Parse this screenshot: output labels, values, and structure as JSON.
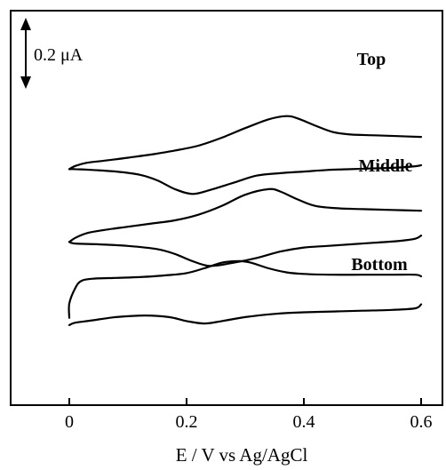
{
  "chart_data": {
    "type": "line",
    "xlabel": "E / V vs Ag/AgCl",
    "ylabel": "",
    "xlim": [
      -0.1,
      0.62
    ],
    "ylim": [
      0,
      1.35
    ],
    "xticks": [
      {
        "value": 0,
        "label": "0"
      },
      {
        "value": 0.2,
        "label": "0.2"
      },
      {
        "value": 0.4,
        "label": "0.4"
      },
      {
        "value": 0.6,
        "label": "0.6"
      }
    ],
    "grid": false,
    "legend": "none",
    "scale_bar": {
      "label": "0.2 μA",
      "value_uA": 0.2
    },
    "series": [
      {
        "name": "Top",
        "forward": [
          [
            0.0,
            0.882
          ],
          [
            0.01,
            0.894
          ],
          [
            0.03,
            0.906
          ],
          [
            0.06,
            0.914
          ],
          [
            0.1,
            0.925
          ],
          [
            0.14,
            0.937
          ],
          [
            0.18,
            0.952
          ],
          [
            0.22,
            0.97
          ],
          [
            0.26,
            1.0
          ],
          [
            0.3,
            1.036
          ],
          [
            0.34,
            1.069
          ],
          [
            0.37,
            1.081
          ],
          [
            0.39,
            1.072
          ],
          [
            0.42,
            1.045
          ],
          [
            0.45,
            1.021
          ],
          [
            0.48,
            1.012
          ],
          [
            0.52,
            1.009
          ],
          [
            0.56,
            1.006
          ],
          [
            0.6,
            1.003
          ]
        ],
        "reverse": [
          [
            0.6,
            0.897
          ],
          [
            0.59,
            0.893
          ],
          [
            0.56,
            0.888
          ],
          [
            0.52,
            0.885
          ],
          [
            0.48,
            0.882
          ],
          [
            0.44,
            0.879
          ],
          [
            0.4,
            0.873
          ],
          [
            0.36,
            0.867
          ],
          [
            0.32,
            0.858
          ],
          [
            0.28,
            0.831
          ],
          [
            0.24,
            0.804
          ],
          [
            0.21,
            0.789
          ],
          [
            0.18,
            0.807
          ],
          [
            0.15,
            0.84
          ],
          [
            0.12,
            0.861
          ],
          [
            0.08,
            0.873
          ],
          [
            0.04,
            0.879
          ],
          [
            0.01,
            0.882
          ],
          [
            0.0,
            0.882
          ]
        ]
      },
      {
        "name": "Middle",
        "forward": [
          [
            0.0,
            0.609
          ],
          [
            0.01,
            0.624
          ],
          [
            0.03,
            0.642
          ],
          [
            0.06,
            0.654
          ],
          [
            0.1,
            0.666
          ],
          [
            0.14,
            0.678
          ],
          [
            0.18,
            0.69
          ],
          [
            0.22,
            0.711
          ],
          [
            0.26,
            0.744
          ],
          [
            0.3,
            0.786
          ],
          [
            0.34,
            0.807
          ],
          [
            0.36,
            0.798
          ],
          [
            0.39,
            0.768
          ],
          [
            0.42,
            0.744
          ],
          [
            0.46,
            0.735
          ],
          [
            0.5,
            0.732
          ],
          [
            0.55,
            0.729
          ],
          [
            0.6,
            0.726
          ]
        ],
        "reverse": [
          [
            0.6,
            0.633
          ],
          [
            0.59,
            0.621
          ],
          [
            0.56,
            0.612
          ],
          [
            0.52,
            0.606
          ],
          [
            0.48,
            0.6
          ],
          [
            0.44,
            0.594
          ],
          [
            0.4,
            0.588
          ],
          [
            0.36,
            0.573
          ],
          [
            0.32,
            0.549
          ],
          [
            0.28,
            0.531
          ],
          [
            0.24,
            0.519
          ],
          [
            0.21,
            0.537
          ],
          [
            0.18,
            0.564
          ],
          [
            0.15,
            0.582
          ],
          [
            0.1,
            0.594
          ],
          [
            0.05,
            0.6
          ],
          [
            0.01,
            0.603
          ],
          [
            0.0,
            0.609
          ]
        ]
      },
      {
        "name": "Bottom",
        "forward": [
          [
            0.0,
            0.324
          ],
          [
            0.0,
            0.378
          ],
          [
            0.01,
            0.435
          ],
          [
            0.02,
            0.462
          ],
          [
            0.04,
            0.471
          ],
          [
            0.08,
            0.474
          ],
          [
            0.12,
            0.477
          ],
          [
            0.16,
            0.483
          ],
          [
            0.2,
            0.492
          ],
          [
            0.23,
            0.51
          ],
          [
            0.26,
            0.531
          ],
          [
            0.29,
            0.537
          ],
          [
            0.31,
            0.531
          ],
          [
            0.34,
            0.51
          ],
          [
            0.37,
            0.495
          ],
          [
            0.4,
            0.489
          ],
          [
            0.45,
            0.486
          ],
          [
            0.5,
            0.486
          ],
          [
            0.55,
            0.486
          ],
          [
            0.59,
            0.486
          ],
          [
            0.6,
            0.48
          ]
        ],
        "reverse": [
          [
            0.6,
            0.375
          ],
          [
            0.59,
            0.36
          ],
          [
            0.55,
            0.354
          ],
          [
            0.5,
            0.351
          ],
          [
            0.45,
            0.348
          ],
          [
            0.4,
            0.345
          ],
          [
            0.35,
            0.339
          ],
          [
            0.3,
            0.327
          ],
          [
            0.26,
            0.312
          ],
          [
            0.23,
            0.303
          ],
          [
            0.2,
            0.312
          ],
          [
            0.17,
            0.327
          ],
          [
            0.13,
            0.333
          ],
          [
            0.08,
            0.327
          ],
          [
            0.04,
            0.315
          ],
          [
            0.01,
            0.306
          ],
          [
            0.0,
            0.297
          ]
        ]
      }
    ]
  }
}
